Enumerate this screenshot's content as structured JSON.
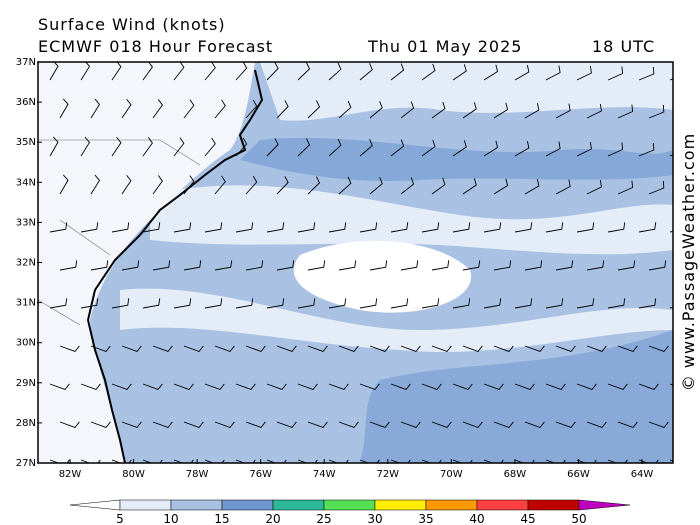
{
  "header": {
    "title": "Surface Wind (knots)",
    "model": "ECMWF 018 Hour Forecast",
    "date": "Thu 01 May 2025",
    "time": "18 UTC"
  },
  "lat_labels": [
    "37N",
    "36N",
    "35N",
    "34N",
    "33N",
    "32N",
    "31N",
    "30N",
    "29N",
    "28N",
    "27N"
  ],
  "lon_labels": [
    "82W",
    "80W",
    "78W",
    "76W",
    "74W",
    "72W",
    "70W",
    "68W",
    "66W",
    "64W"
  ],
  "legend": {
    "ticks": [
      "5",
      "10",
      "15",
      "20",
      "25",
      "30",
      "35",
      "40",
      "45",
      "50"
    ],
    "colors": [
      "#e4ecf8",
      "#a9c1e3",
      "#6f97d2",
      "#2eb89a",
      "#55e055",
      "#ffee00",
      "#ff9900",
      "#ff4040",
      "#c00000"
    ],
    "low_color": "#ffffff",
    "high_color": "#c000c0"
  },
  "credit": "© www.PassageWeather.com"
}
